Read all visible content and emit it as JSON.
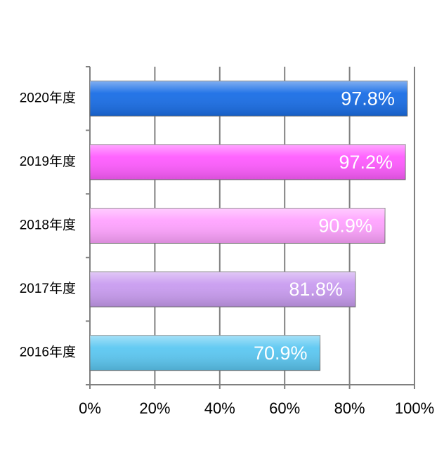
{
  "chart_data": {
    "type": "hbar",
    "categories": [
      "2020年度",
      "2019年度",
      "2018年度",
      "2017年度",
      "2016年度"
    ],
    "values": [
      97.8,
      97.2,
      90.9,
      81.8,
      70.9
    ],
    "value_labels": [
      "97.8%",
      "97.2%",
      "90.9%",
      "81.8%",
      "70.9%"
    ],
    "colors": [
      "#1a6ee6",
      "#ff5cff",
      "#ffa3ff",
      "#c99cf0",
      "#5cc8f2"
    ],
    "xlim": [
      0,
      100
    ],
    "xticks": [
      {
        "value": 0,
        "label": "0%"
      },
      {
        "value": 20,
        "label": "20%"
      },
      {
        "value": 40,
        "label": "40%"
      },
      {
        "value": 60,
        "label": "60%"
      },
      {
        "value": 80,
        "label": "80%"
      },
      {
        "value": 100,
        "label": "100%"
      }
    ],
    "grid": true
  }
}
